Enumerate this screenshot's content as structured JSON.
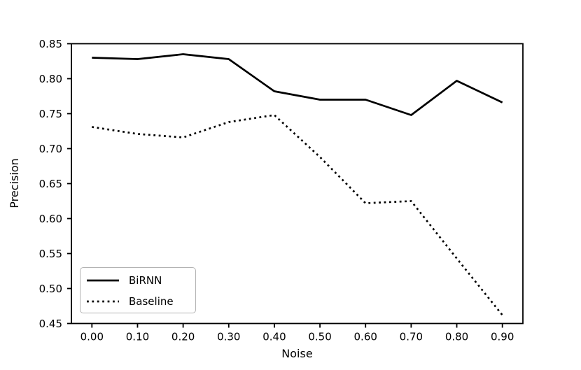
{
  "chart_data": {
    "type": "line",
    "title": "",
    "xlabel": "Noise",
    "ylabel": "Precision",
    "x": [
      0.0,
      0.1,
      0.2,
      0.3,
      0.4,
      0.5,
      0.6,
      0.7,
      0.8,
      0.9
    ],
    "series": [
      {
        "name": "BiRNN",
        "style": "solid",
        "color": "#000000",
        "values": [
          0.83,
          0.828,
          0.835,
          0.828,
          0.782,
          0.77,
          0.77,
          0.748,
          0.797,
          0.766
        ]
      },
      {
        "name": "Baseline",
        "style": "dotted",
        "color": "#000000",
        "values": [
          0.731,
          0.721,
          0.716,
          0.738,
          0.748,
          0.688,
          0.622,
          0.625,
          0.543,
          0.462
        ]
      }
    ],
    "xlim": [
      -0.045,
      0.945
    ],
    "ylim": [
      0.45,
      0.85
    ],
    "xticks": {
      "values": [
        0.0,
        0.1,
        0.2,
        0.3,
        0.4,
        0.5,
        0.6,
        0.7,
        0.8,
        0.9
      ],
      "labels": [
        "0.00",
        "0.10",
        "0.20",
        "0.30",
        "0.40",
        "0.50",
        "0.60",
        "0.70",
        "0.80",
        "0.90"
      ]
    },
    "yticks": {
      "values": [
        0.45,
        0.5,
        0.55,
        0.6,
        0.65,
        0.7,
        0.75,
        0.8,
        0.85
      ],
      "labels": [
        "0.45",
        "0.50",
        "0.55",
        "0.60",
        "0.65",
        "0.70",
        "0.75",
        "0.80",
        "0.85"
      ]
    },
    "grid": false,
    "legend_position": "lower left",
    "axis_color": "#000000",
    "background_color": "#ffffff"
  }
}
